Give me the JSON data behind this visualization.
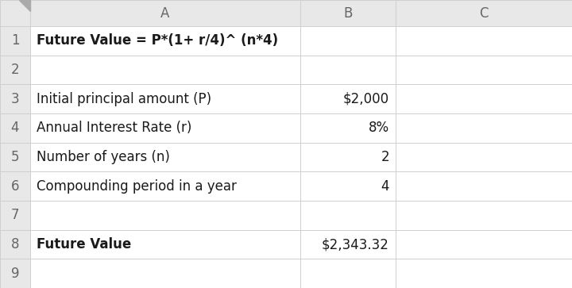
{
  "col_header_labels": [
    "A",
    "B",
    "C"
  ],
  "row_numbers": [
    "1",
    "2",
    "3",
    "4",
    "5",
    "6",
    "7",
    "8",
    "9"
  ],
  "cells": {
    "A1": {
      "text": "Future Value = P*(1+ r/4)^ (n*4)",
      "bold": true,
      "align": "left"
    },
    "A2": {
      "text": "",
      "bold": false,
      "align": "left"
    },
    "A3": {
      "text": "Initial principal amount (P)",
      "bold": false,
      "align": "left"
    },
    "A4": {
      "text": "Annual Interest Rate (r)",
      "bold": false,
      "align": "left"
    },
    "A5": {
      "text": "Number of years (n)",
      "bold": false,
      "align": "left"
    },
    "A6": {
      "text": "Compounding period in a year",
      "bold": false,
      "align": "left"
    },
    "A7": {
      "text": "",
      "bold": false,
      "align": "left"
    },
    "A8": {
      "text": "Future Value",
      "bold": true,
      "align": "left"
    },
    "A9": {
      "text": "",
      "bold": false,
      "align": "left"
    },
    "B3": {
      "text": "$2,000",
      "bold": false,
      "align": "right"
    },
    "B4": {
      "text": "8%",
      "bold": false,
      "align": "right"
    },
    "B5": {
      "text": "2",
      "bold": false,
      "align": "right"
    },
    "B6": {
      "text": "4",
      "bold": false,
      "align": "right"
    },
    "B8": {
      "text": "$2,343.32",
      "bold": false,
      "align": "right"
    }
  },
  "header_bg": "#e8e8e8",
  "cell_bg": "#ffffff",
  "grid_color": "#d0d0d0",
  "text_color": "#1a1a1a",
  "header_text_color": "#666666",
  "font_size": 12,
  "header_font_size": 12,
  "fig_bg": "#f2f2f2"
}
